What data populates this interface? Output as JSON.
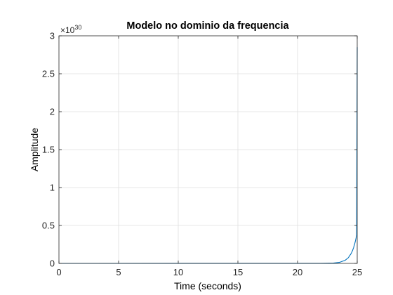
{
  "chart_data": {
    "type": "line",
    "title": "Modelo no dominio da frequencia",
    "xlabel": "Time (seconds)",
    "ylabel": "Amplitude",
    "xlim": [
      0,
      25
    ],
    "ylim": [
      0,
      3
    ],
    "y_exponent_base": "×10",
    "y_exponent_power": "30",
    "y_multiplier": 1e+30,
    "grid": true,
    "x_ticks": [
      0,
      5,
      10,
      15,
      20,
      25
    ],
    "x_tick_labels": [
      "0",
      "5",
      "10",
      "15",
      "20",
      "25"
    ],
    "y_ticks": [
      0,
      0.5,
      1,
      1.5,
      2,
      2.5,
      3
    ],
    "y_tick_labels": [
      "0",
      "0.5",
      "1",
      "1.5",
      "2",
      "2.5",
      "3"
    ],
    "series": [
      {
        "color": "#0072bd",
        "x": [
          0,
          22,
          23,
          23.5,
          24,
          24.25,
          24.5,
          24.6,
          24.7,
          24.8,
          24.85,
          24.9,
          24.95,
          25
        ],
        "y": [
          0,
          0.0004,
          0.004,
          0.013,
          0.042,
          0.074,
          0.132,
          0.166,
          0.209,
          0.264,
          0.296,
          0.332,
          0.372,
          2.85
        ]
      }
    ]
  }
}
